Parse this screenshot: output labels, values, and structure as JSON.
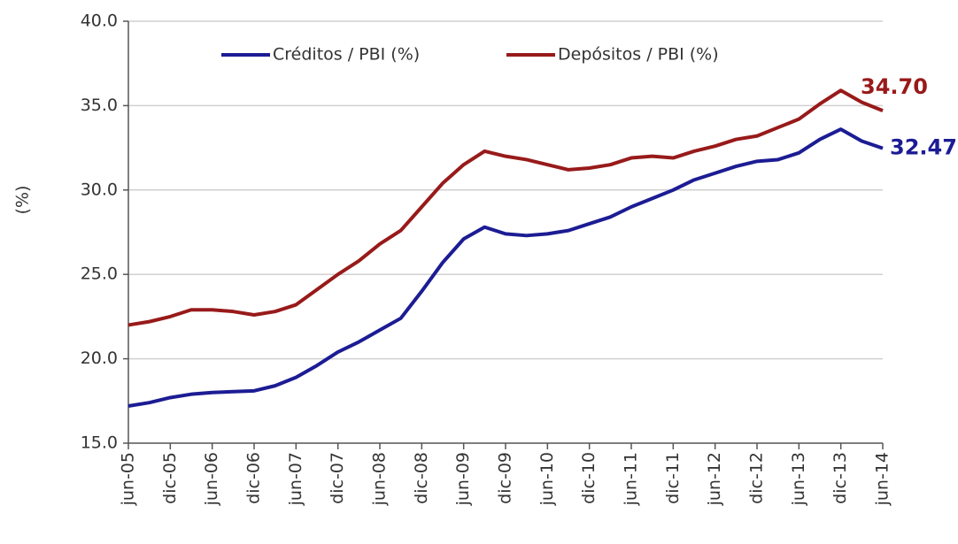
{
  "chart_data": {
    "type": "line",
    "y_label": "(%)",
    "categories": [
      "jun-05",
      null,
      "dic-05",
      null,
      "jun-06",
      null,
      "dic-06",
      null,
      "jun-07",
      null,
      "dic-07",
      null,
      "jun-08",
      null,
      "dic-08",
      null,
      "jun-09",
      null,
      "dic-09",
      null,
      "jun-10",
      null,
      "dic-10",
      null,
      "jun-11",
      null,
      "dic-11",
      null,
      "jun-12",
      null,
      "dic-12",
      null,
      "jun-13",
      null,
      "dic-13",
      null,
      "jun-14"
    ],
    "series": [
      {
        "name": "Créditos / PBI (%)",
        "color": "#1c1c94",
        "values": [
          17.2,
          17.4,
          17.7,
          17.9,
          18.0,
          18.05,
          18.1,
          18.4,
          18.9,
          19.6,
          20.4,
          21.0,
          21.7,
          22.4,
          24.0,
          25.7,
          27.1,
          27.8,
          27.4,
          27.3,
          27.4,
          27.6,
          28.0,
          28.4,
          29.0,
          29.5,
          30.0,
          30.6,
          31.0,
          31.4,
          31.7,
          31.8,
          32.2,
          33.0,
          33.6,
          32.9,
          32.47
        ],
        "value_labels": [
          null,
          null,
          null,
          null,
          null,
          null,
          null,
          null,
          null,
          null,
          null,
          null,
          null,
          null,
          null,
          null,
          null,
          null,
          null,
          null,
          null,
          null,
          null,
          null,
          null,
          null,
          null,
          null,
          null,
          null,
          null,
          null,
          null,
          null,
          null,
          null,
          "32.47"
        ]
      },
      {
        "name": "Depósitos / PBI (%)",
        "color": "#981a1a",
        "values": [
          22.0,
          22.2,
          22.5,
          22.9,
          22.9,
          22.8,
          22.6,
          22.8,
          23.2,
          24.1,
          25.0,
          25.8,
          26.8,
          27.6,
          29.0,
          30.4,
          31.5,
          32.3,
          32.0,
          31.8,
          31.5,
          31.2,
          31.3,
          31.5,
          31.9,
          32.0,
          31.9,
          32.3,
          32.6,
          33.0,
          33.2,
          33.7,
          34.2,
          35.1,
          35.9,
          35.2,
          34.7
        ],
        "value_labels": [
          null,
          null,
          null,
          null,
          null,
          null,
          null,
          null,
          null,
          null,
          null,
          null,
          null,
          null,
          null,
          null,
          null,
          null,
          null,
          null,
          null,
          null,
          null,
          null,
          null,
          null,
          null,
          null,
          null,
          null,
          null,
          null,
          null,
          null,
          null,
          null,
          "34.70"
        ]
      }
    ],
    "ylim": [
      15,
      40
    ],
    "yticks": [
      {
        "value": 15,
        "label": "15.0"
      },
      {
        "value": 20,
        "label": "20.0"
      },
      {
        "value": 25,
        "label": "25.0"
      },
      {
        "value": 30,
        "label": "30.0"
      },
      {
        "value": 35,
        "label": "35.0"
      },
      {
        "value": 40,
        "label": "40.0"
      }
    ],
    "grid": true
  }
}
